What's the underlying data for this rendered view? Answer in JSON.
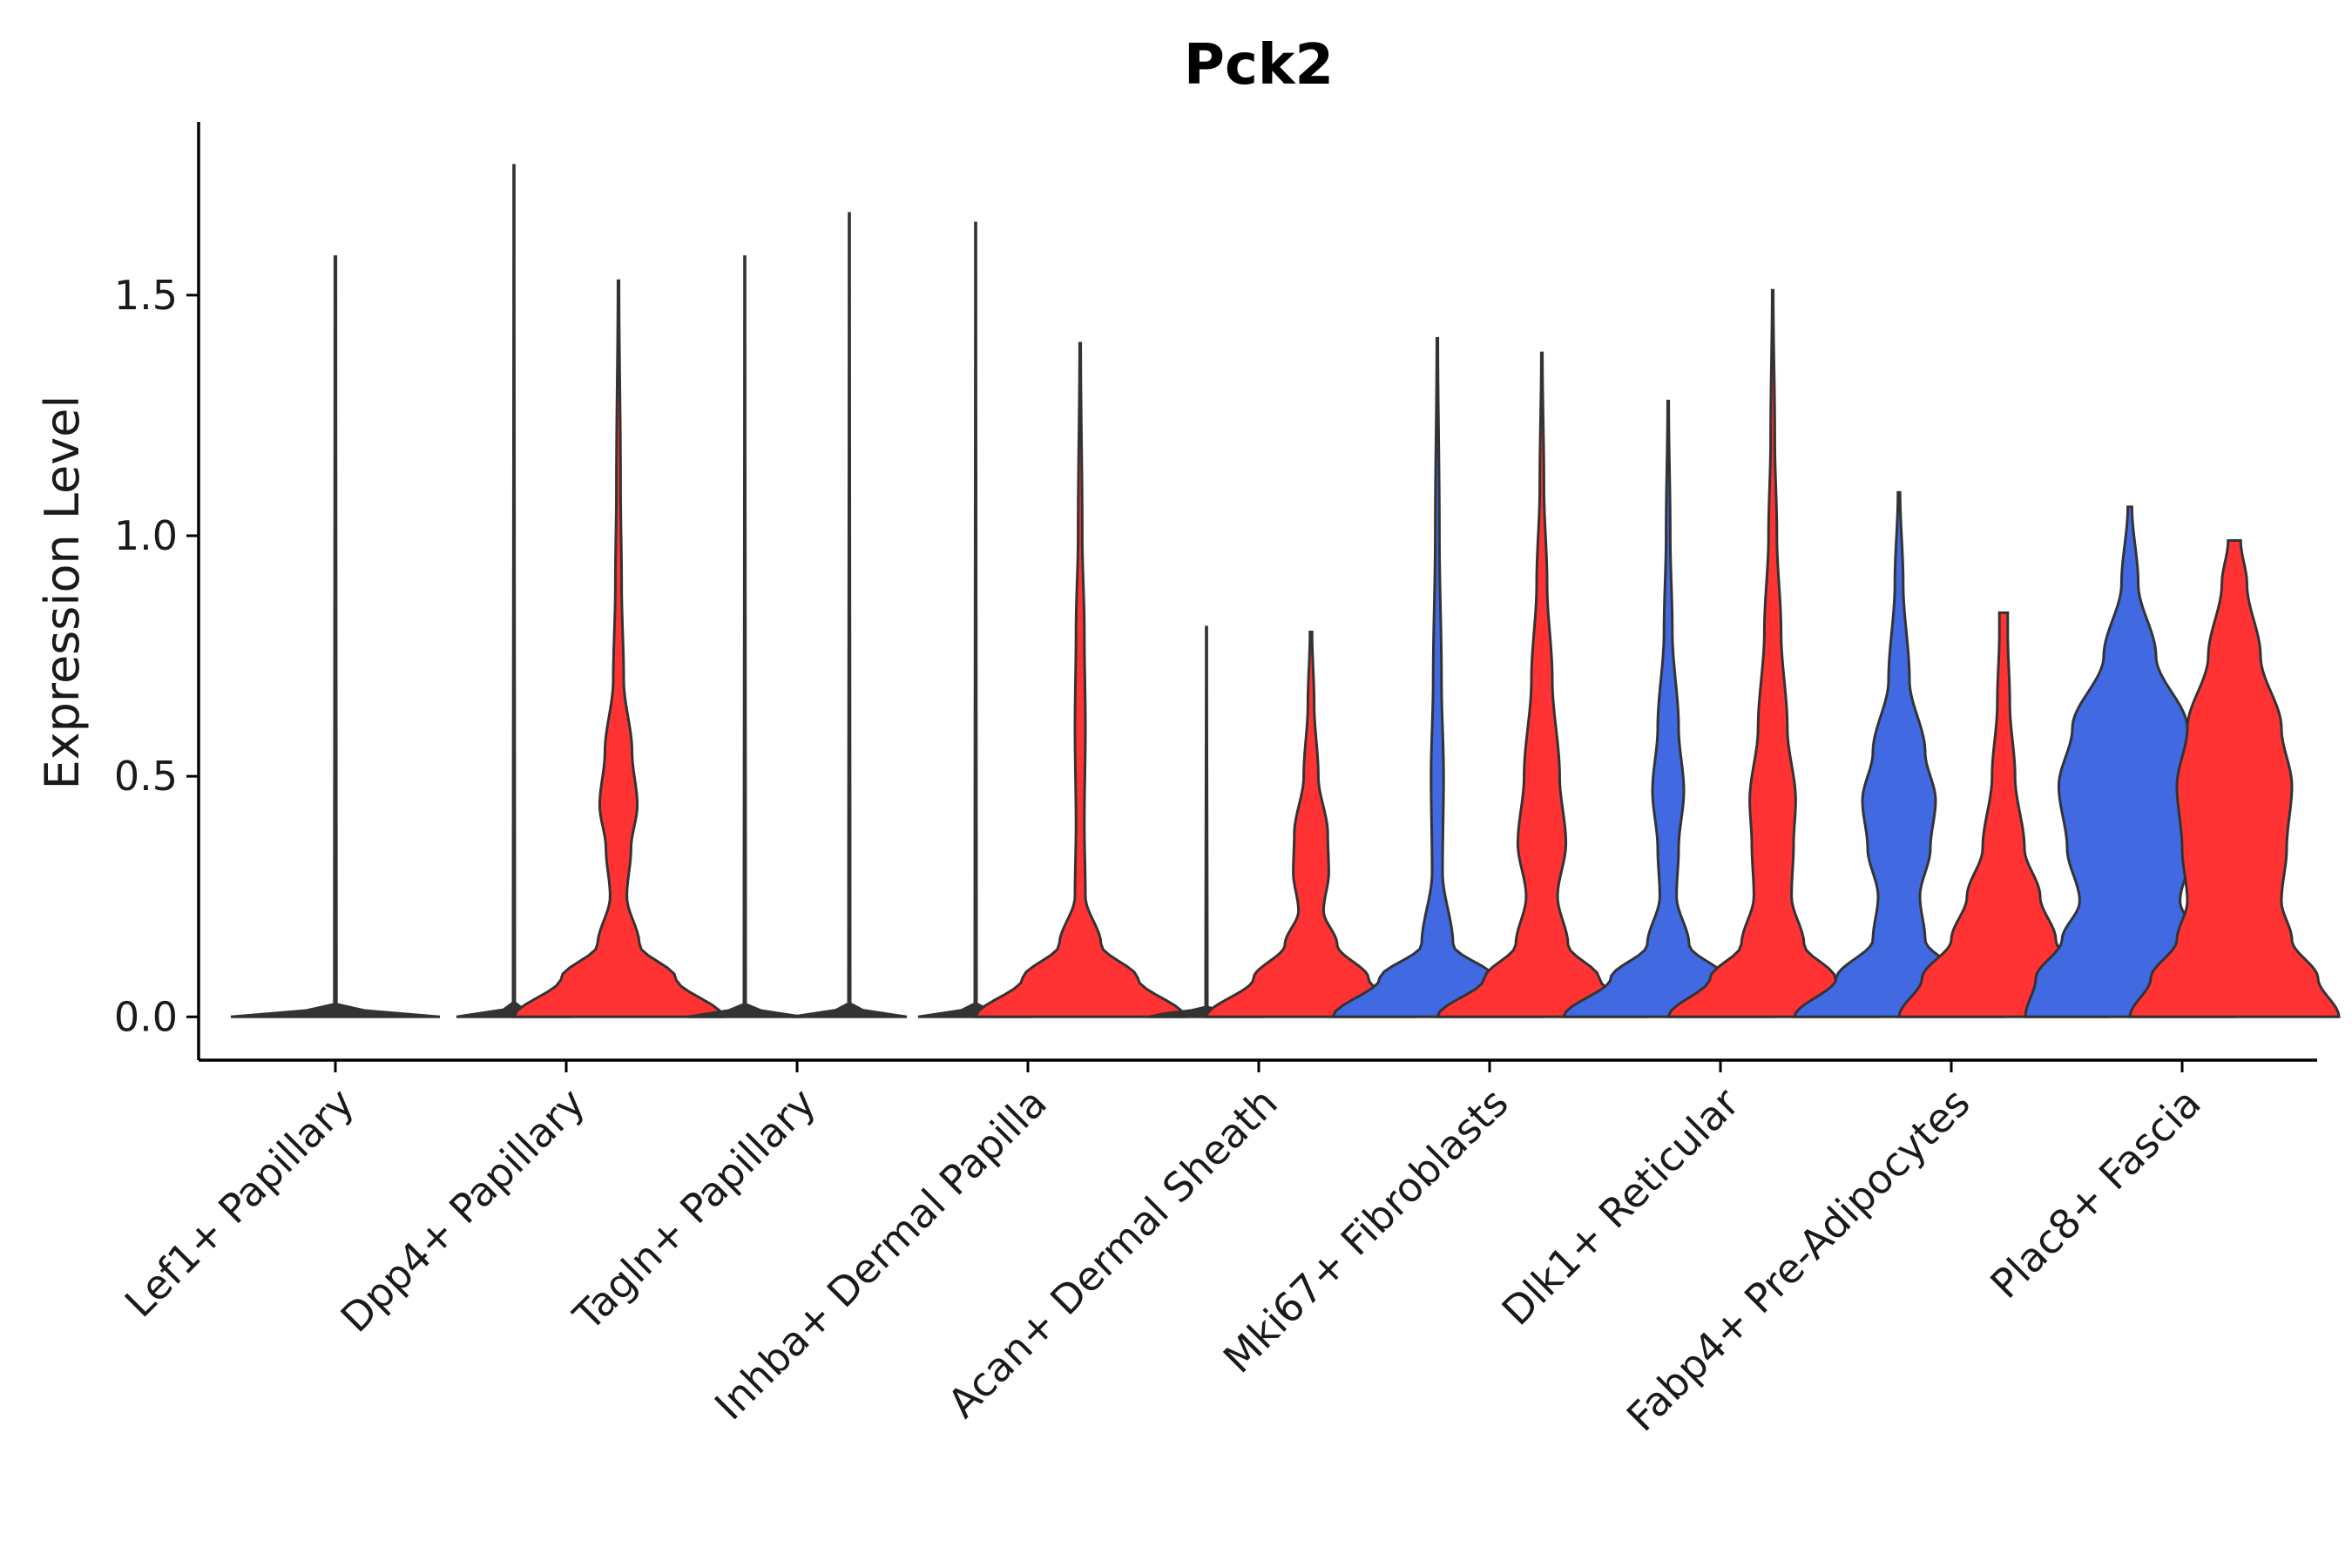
{
  "chart_data": {
    "type": "violin",
    "title": "Pck2",
    "xlabel": "",
    "ylabel": "Expression Level",
    "ylim": [
      -0.09,
      1.86
    ],
    "yticks": [
      0.0,
      0.5,
      1.0,
      1.5
    ],
    "ytick_labels": [
      "0.0",
      "0.5",
      "1.0",
      "1.5"
    ],
    "legend": "none",
    "series_colors": {
      "group1": "#4169E1",
      "group2": "#FF3333",
      "sparse": "#333333"
    },
    "categories": [
      {
        "label": "Lef1+ Papillary",
        "violins": [
          {
            "series": "sparse",
            "max": 1.58,
            "scale": 1.0,
            "density": [
              [
                0.0,
                1.0
              ],
              [
                0.02,
                0.01
              ],
              [
                1.58,
                0.005
              ]
            ]
          }
        ]
      },
      {
        "label": "Dpp4+ Papillary",
        "violins": [
          {
            "series": "sparse",
            "max": 1.77,
            "scale": 0.55,
            "density": [
              [
                0.0,
                1.0
              ],
              [
                0.02,
                0.015
              ],
              [
                1.77,
                0.005
              ]
            ]
          },
          {
            "series": "group2",
            "max": 1.53,
            "scale": 1.0,
            "density": [
              [
                0.0,
                1.0
              ],
              [
                0.08,
                0.55
              ],
              [
                0.15,
                0.2
              ],
              [
                0.25,
                0.08
              ],
              [
                0.35,
                0.12
              ],
              [
                0.44,
                0.18
              ],
              [
                0.55,
                0.13
              ],
              [
                0.7,
                0.05
              ],
              [
                0.9,
                0.03
              ],
              [
                1.1,
                0.02
              ],
              [
                1.53,
                0.005
              ]
            ]
          }
        ]
      },
      {
        "label": "Tagln+ Papillary",
        "violins": [
          {
            "series": "sparse",
            "max": 1.58,
            "scale": 0.55,
            "density": [
              [
                0.0,
                1.0
              ],
              [
                0.02,
                0.015
              ],
              [
                1.58,
                0.005
              ]
            ]
          },
          {
            "series": "sparse",
            "max": 1.67,
            "scale": 0.55,
            "density": [
              [
                0.0,
                1.0
              ],
              [
                0.02,
                0.015
              ],
              [
                1.67,
                0.005
              ]
            ]
          }
        ]
      },
      {
        "label": "Inhba+ Dermal Papilla",
        "violins": [
          {
            "series": "sparse",
            "max": 1.65,
            "scale": 0.55,
            "density": [
              [
                0.0,
                1.0
              ],
              [
                0.02,
                0.015
              ],
              [
                1.65,
                0.005
              ]
            ]
          },
          {
            "series": "group2",
            "max": 1.4,
            "scale": 1.0,
            "density": [
              [
                0.0,
                1.0
              ],
              [
                0.08,
                0.55
              ],
              [
                0.15,
                0.2
              ],
              [
                0.25,
                0.05
              ],
              [
                0.4,
                0.04
              ],
              [
                0.6,
                0.05
              ],
              [
                0.8,
                0.04
              ],
              [
                1.0,
                0.02
              ],
              [
                1.4,
                0.005
              ]
            ]
          }
        ]
      },
      {
        "label": "Acan+ Dermal Sheath",
        "violins": [
          {
            "series": "sparse",
            "max": 0.81,
            "scale": 0.55,
            "density": [
              [
                0.0,
                1.0
              ],
              [
                0.02,
                0.015
              ],
              [
                0.81,
                0.005
              ]
            ]
          },
          {
            "series": "group2",
            "max": 0.8,
            "scale": 1.0,
            "density": [
              [
                0.0,
                1.0
              ],
              [
                0.08,
                0.55
              ],
              [
                0.15,
                0.25
              ],
              [
                0.22,
                0.12
              ],
              [
                0.3,
                0.17
              ],
              [
                0.38,
                0.16
              ],
              [
                0.5,
                0.07
              ],
              [
                0.65,
                0.03
              ],
              [
                0.8,
                0.01
              ]
            ]
          }
        ]
      },
      {
        "label": "Mki67+ Fibroblasts",
        "violins": [
          {
            "series": "group1",
            "max": 1.41,
            "scale": 1.0,
            "density": [
              [
                0.0,
                1.0
              ],
              [
                0.08,
                0.55
              ],
              [
                0.15,
                0.15
              ],
              [
                0.3,
                0.05
              ],
              [
                0.5,
                0.06
              ],
              [
                0.7,
                0.04
              ],
              [
                1.0,
                0.02
              ],
              [
                1.41,
                0.005
              ]
            ]
          },
          {
            "series": "group2",
            "max": 1.38,
            "scale": 1.0,
            "density": [
              [
                0.0,
                1.0
              ],
              [
                0.08,
                0.55
              ],
              [
                0.15,
                0.25
              ],
              [
                0.25,
                0.15
              ],
              [
                0.36,
                0.23
              ],
              [
                0.5,
                0.17
              ],
              [
                0.7,
                0.1
              ],
              [
                0.9,
                0.05
              ],
              [
                1.1,
                0.02
              ],
              [
                1.38,
                0.005
              ]
            ]
          }
        ]
      },
      {
        "label": "Dlk1+ Reticular",
        "violins": [
          {
            "series": "group1",
            "max": 1.28,
            "scale": 1.0,
            "density": [
              [
                0.0,
                1.0
              ],
              [
                0.08,
                0.55
              ],
              [
                0.15,
                0.2
              ],
              [
                0.25,
                0.08
              ],
              [
                0.35,
                0.1
              ],
              [
                0.47,
                0.15
              ],
              [
                0.6,
                0.1
              ],
              [
                0.8,
                0.04
              ],
              [
                1.0,
                0.02
              ],
              [
                1.28,
                0.005
              ]
            ]
          },
          {
            "series": "group2",
            "max": 1.51,
            "scale": 1.0,
            "density": [
              [
                0.0,
                1.0
              ],
              [
                0.08,
                0.6
              ],
              [
                0.15,
                0.3
              ],
              [
                0.25,
                0.18
              ],
              [
                0.36,
                0.2
              ],
              [
                0.45,
                0.22
              ],
              [
                0.6,
                0.14
              ],
              [
                0.8,
                0.08
              ],
              [
                1.0,
                0.04
              ],
              [
                1.2,
                0.02
              ],
              [
                1.51,
                0.005
              ]
            ]
          }
        ]
      },
      {
        "label": "Fabp4+ Pre-Adipocytes",
        "violins": [
          {
            "series": "group1",
            "max": 1.09,
            "scale": 1.0,
            "density": [
              [
                0.0,
                1.0
              ],
              [
                0.08,
                0.6
              ],
              [
                0.16,
                0.25
              ],
              [
                0.25,
                0.2
              ],
              [
                0.35,
                0.3
              ],
              [
                0.45,
                0.35
              ],
              [
                0.55,
                0.25
              ],
              [
                0.7,
                0.1
              ],
              [
                0.9,
                0.04
              ],
              [
                1.09,
                0.01
              ]
            ]
          },
          {
            "series": "group2",
            "max": 0.84,
            "scale": 1.0,
            "density": [
              [
                0.0,
                1.0
              ],
              [
                0.08,
                0.78
              ],
              [
                0.16,
                0.5
              ],
              [
                0.25,
                0.35
              ],
              [
                0.35,
                0.2
              ],
              [
                0.5,
                0.11
              ],
              [
                0.65,
                0.06
              ],
              [
                0.8,
                0.04
              ],
              [
                0.84,
                0.04
              ]
            ]
          }
        ]
      },
      {
        "label": "Plac8+ Fascia",
        "violins": [
          {
            "series": "group1",
            "max": 1.06,
            "scale": 1.0,
            "density": [
              [
                0.0,
                1.0
              ],
              [
                0.08,
                0.9
              ],
              [
                0.16,
                0.65
              ],
              [
                0.24,
                0.48
              ],
              [
                0.35,
                0.6
              ],
              [
                0.48,
                0.68
              ],
              [
                0.6,
                0.55
              ],
              [
                0.75,
                0.25
              ],
              [
                0.9,
                0.08
              ],
              [
                1.06,
                0.02
              ]
            ]
          },
          {
            "series": "group2",
            "max": 0.99,
            "scale": 1.0,
            "density": [
              [
                0.0,
                1.0
              ],
              [
                0.08,
                0.8
              ],
              [
                0.16,
                0.55
              ],
              [
                0.24,
                0.45
              ],
              [
                0.35,
                0.5
              ],
              [
                0.48,
                0.55
              ],
              [
                0.6,
                0.45
              ],
              [
                0.75,
                0.25
              ],
              [
                0.9,
                0.12
              ],
              [
                0.99,
                0.06
              ]
            ]
          }
        ]
      }
    ]
  }
}
